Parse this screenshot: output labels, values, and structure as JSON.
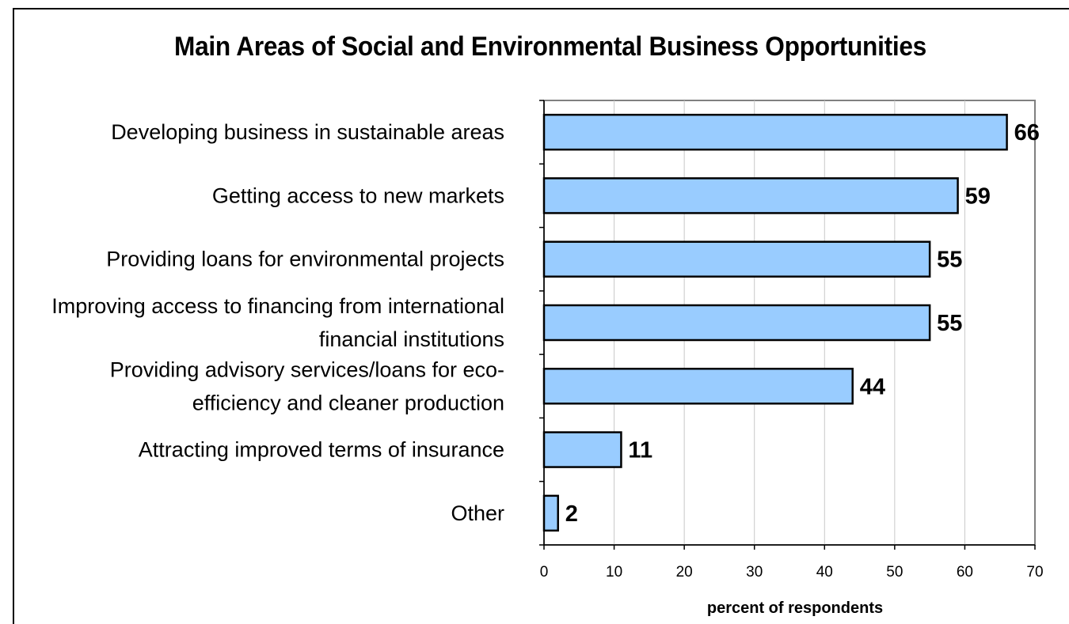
{
  "chart_data": {
    "type": "bar",
    "orientation": "horizontal",
    "title": "Main Areas of Social and Environmental Business Opportunities",
    "categories": [
      [
        "Developing business in sustainable areas"
      ],
      [
        "Getting access to new markets"
      ],
      [
        "Providing loans for environmental projects"
      ],
      [
        "Improving access to financing from international",
        "financial institutions"
      ],
      [
        "Providing advisory services/loans for eco-",
        "efficiency and cleaner production"
      ],
      [
        "Attracting improved terms of insurance"
      ],
      [
        "Other"
      ]
    ],
    "values": [
      66,
      59,
      55,
      55,
      44,
      11,
      2
    ],
    "data_labels": [
      "66",
      "59",
      "55",
      "55",
      "44",
      "11",
      "2"
    ],
    "xlabel": "percent of respondents",
    "ylabel": "",
    "xlim": [
      0,
      70
    ],
    "xticks": [
      "0",
      "10",
      "20",
      "30",
      "40",
      "50",
      "60",
      "70"
    ],
    "grid": "vertical",
    "bar_color": "#99ccff",
    "bar_border_color": "#000000",
    "legend": "none"
  }
}
